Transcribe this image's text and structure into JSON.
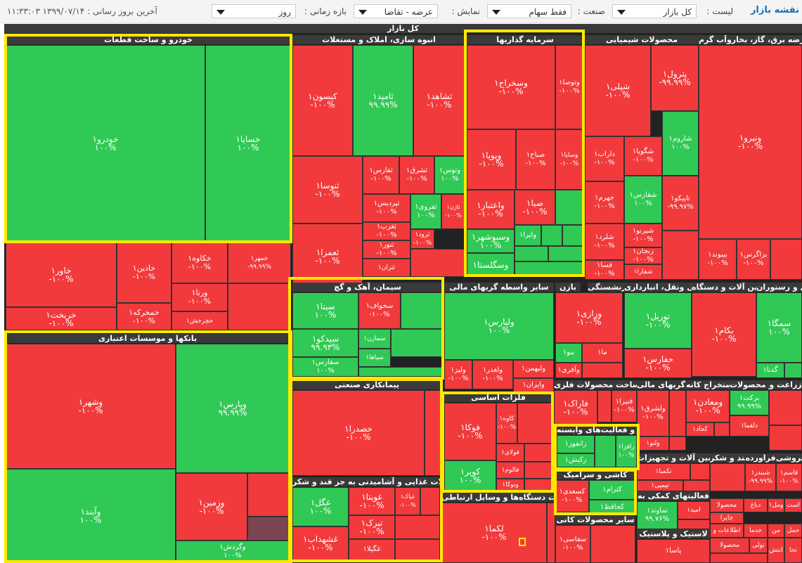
{
  "toolbar": {
    "title": "نقشه بازار",
    "list_label": "لیست :",
    "list_value": "کل بازار",
    "industry_label": "صنعت :",
    "industry_value": "فقط سهام",
    "display_label": "نمایش :",
    "display_value": "عرضه - تقاضا",
    "period_label": "بازه زمانی :",
    "period_value": "روز",
    "last_update": "آخرین بروز رسانی : ۱۳۹۹/۰۷/۱۴ ۱۱:۳۳:۰۳"
  },
  "map_title": "کل بازار",
  "sectors": [
    "خودرو و ساخت قطعات",
    "انبوه سازی، املاک و مستغلات",
    "سرمایه گذاریها",
    "محصولات شیمیایی",
    "عرضه برق، گاز، بخاروآب گرم",
    "سیمان، آهک و گچ",
    "سایر واسطه گریهای مالی",
    "بازن",
    "بیمه وصندوق بازنشستگی",
    "حمل ونقل، انبارداری",
    "ماشین آلات و دستگاه",
    "هتل و رستوران",
    "بانکها و موسسات اعتباری",
    "پیمانکاری صنعتی",
    "فلزات اساسی",
    "ساخت محصولات فلزی",
    "واسطه گریهای مالی",
    "استخراج کانه",
    "مواد و محصولات",
    "زراعت و",
    "رایانه و فعالیت‌های وابسته",
    "ماشین آلات و تجهیزات",
    "قند و شکر",
    "فراورده",
    "خرده فروشی",
    "محصولات غذایی و آشامیدنی به جز قند و شکر",
    "ساخت دستگاه‌ها و وسایل ارتباطی",
    "کاشی و سرامیک",
    "فعالیتهای کمکی به",
    "سایر محصولات کانی",
    "لاستیک و پلاستیک"
  ],
  "tiles": [
    {
      "name": "خودرو۱",
      "value": "۱۰۰%"
    },
    {
      "name": "خساپا۱",
      "value": "۱۰۰%"
    },
    {
      "name": "خاور۱",
      "value": "-۱۰۰%"
    },
    {
      "name": "خاذین۱",
      "value": "-۱۰۰%"
    },
    {
      "name": "خکاوه۱",
      "value": "-۱۰۰%"
    },
    {
      "name": "خمهر۱",
      "value": "-۹۹.۹۹%"
    },
    {
      "name": "خریخت۱",
      "value": "-۱۰۰%"
    },
    {
      "name": "خمحرکه۱",
      "value": "-۱۰۰%"
    },
    {
      "name": "ورنا۱",
      "value": "-۱۰۰%"
    },
    {
      "name": "خچرخش۱",
      "value": ""
    },
    {
      "name": "کیسون۱",
      "value": "-۱۰۰%"
    },
    {
      "name": "ثامید۱",
      "value": "۹۹.۹۹%"
    },
    {
      "name": "ثشاهد۱",
      "value": "-۱۰۰%"
    },
    {
      "name": "ثنوسا۱",
      "value": "-۱۰۰%"
    },
    {
      "name": "ثفارس۱",
      "value": "-۱۰۰%"
    },
    {
      "name": "ثشرق۱",
      "value": "-۱۰۰%"
    },
    {
      "name": "وتوس۱",
      "value": "۱۰۰%"
    },
    {
      "name": "ثپردیس۱",
      "value": "-۱۰۰%"
    },
    {
      "name": "ثعمرا۱",
      "value": "-۱۰۰%"
    },
    {
      "name": "ثغرب۱",
      "value": "-۱۰۰%"
    },
    {
      "name": "ثنور۱",
      "value": "-۱۰۰%"
    },
    {
      "name": "ثتران۱",
      "value": ""
    },
    {
      "name": "ثفروی۱",
      "value": "۱۰۰%"
    },
    {
      "name": "ثاژن۱",
      "value": "-۱۰۰%"
    },
    {
      "name": "ثرود۱",
      "value": "-۱۰۰%"
    },
    {
      "name": "وسخراج۱",
      "value": "-۱۰۰%"
    },
    {
      "name": "وتوصا۱",
      "value": "-۱۰۰%"
    },
    {
      "name": "وپویا۱",
      "value": "-۱۰۰%"
    },
    {
      "name": "صباح۱",
      "value": "-۱۰۰%"
    },
    {
      "name": "وساپا۱",
      "value": "-۱۰۰%"
    },
    {
      "name": "واعتبار۱",
      "value": "-۱۰۰%"
    },
    {
      "name": "صبا۱",
      "value": "-۱۰۰%"
    },
    {
      "name": "وسبوشهر۱",
      "value": "۱۰۰%"
    },
    {
      "name": "وایرا۱",
      "value": ""
    },
    {
      "name": "وسگلستا۱",
      "value": ""
    },
    {
      "name": "شپلی۱",
      "value": "-۱۰۰%"
    },
    {
      "name": "پترول۱",
      "value": "-۹۹.۹۹%"
    },
    {
      "name": "داراب۱",
      "value": "-۱۰۰%"
    },
    {
      "name": "شگویا۱",
      "value": "-۱۰۰%"
    },
    {
      "name": "شاروم۱",
      "value": "۱۰۰%"
    },
    {
      "name": "جهرم۱",
      "value": "-۱۰۰%"
    },
    {
      "name": "شفارس۱",
      "value": "۱۰۰%"
    },
    {
      "name": "تاپیکو۱",
      "value": "-۹۹.۹۷%"
    },
    {
      "name": "شیرنو۱",
      "value": "-۱۰۰%"
    },
    {
      "name": "شلرد۱",
      "value": "-۱۰۰%"
    },
    {
      "name": "زنجان۱",
      "value": "-۱۰۰%"
    },
    {
      "name": "فسا۱",
      "value": "-۱۰۰%"
    },
    {
      "name": "شفارا۱",
      "value": ""
    },
    {
      "name": "ونیرو۱",
      "value": "-۱۰۰%"
    },
    {
      "name": "بیبوند۱",
      "value": "-۱۰۰%"
    },
    {
      "name": "بزاگرس۱",
      "value": "-۱۰۰%"
    },
    {
      "name": "سیتا۱",
      "value": "۱۰۰%"
    },
    {
      "name": "سخواف۱",
      "value": "-۱۰۰%"
    },
    {
      "name": "سیدکو۱",
      "value": "۹۹.۹۳%"
    },
    {
      "name": "سمازن۱",
      "value": ""
    },
    {
      "name": "سپاها۱",
      "value": ""
    },
    {
      "name": "سفارس۱",
      "value": "۱۰۰%"
    },
    {
      "name": "ولپارس۱",
      "value": "۱۰۰%"
    },
    {
      "name": "ولیز۱",
      "value": "-۱۰۰%"
    },
    {
      "name": "ولغدر۱",
      "value": "-۱۰۰%"
    },
    {
      "name": "ولبهمن۱",
      "value": ""
    },
    {
      "name": "وایران۱",
      "value": ""
    },
    {
      "name": "ورازی۱",
      "value": "-۱۰۰%"
    },
    {
      "name": "بنو۱",
      "value": ""
    },
    {
      "name": "وآفری۱",
      "value": ""
    },
    {
      "name": "ما۱",
      "value": ""
    },
    {
      "name": "توریل۱",
      "value": "-۱۰۰%"
    },
    {
      "name": "حفارس۱",
      "value": "-۱۰۰%"
    },
    {
      "name": "بکام۱",
      "value": "-۱۰۰%"
    },
    {
      "name": "سمگا۱",
      "value": "۱۰۰%"
    },
    {
      "name": "گدنا۱",
      "value": ""
    },
    {
      "name": "وشهر۱",
      "value": "-۱۰۰%"
    },
    {
      "name": "وپارس۱",
      "value": "۹۹.۹۹%"
    },
    {
      "name": "وآیند۱",
      "value": "۱۰۰%"
    },
    {
      "name": "وزمین۱",
      "value": "-۱۰۰%"
    },
    {
      "name": "وگردش۱",
      "value": "۱۰۰%"
    },
    {
      "name": "خصدرا۱",
      "value": "-۱۰۰%"
    },
    {
      "name": "فوکا۱",
      "value": "-۱۰۰%"
    },
    {
      "name": "کاوه۱",
      "value": "-۱۰۰%"
    },
    {
      "name": "فولای۱",
      "value": ""
    },
    {
      "name": "فالوم۱",
      "value": ""
    },
    {
      "name": "کویر۱",
      "value": "۱۰۰%"
    },
    {
      "name": "ونوکا۱",
      "value": ""
    },
    {
      "name": "فاراک۱",
      "value": "-۱۰۰%"
    },
    {
      "name": "فنیرا۱",
      "value": "-۱۰۰%"
    },
    {
      "name": "ولشرق۱",
      "value": "-۱۰۰%"
    },
    {
      "name": "ومعادن۱",
      "value": "-۱۰۰%"
    },
    {
      "name": "برکت۱",
      "value": "۹۹.۹۹%"
    },
    {
      "name": "کجاد۱",
      "value": ""
    },
    {
      "name": "دلقما۱",
      "value": ""
    },
    {
      "name": "ولنو۱",
      "value": ""
    },
    {
      "name": "رانفور۱",
      "value": ""
    },
    {
      "name": "رکیش۱",
      "value": ""
    },
    {
      "name": "رافزا۱",
      "value": "۱۰۰%"
    },
    {
      "name": "تکمبا۱",
      "value": ""
    },
    {
      "name": "تپمپی۱",
      "value": ""
    },
    {
      "name": "شبندر۱",
      "value": "-۹۹.۹۹%"
    },
    {
      "name": "قاسم۱",
      "value": "-۱۰۰%"
    },
    {
      "name": "غگل۱",
      "value": "۱۰۰%"
    },
    {
      "name": "غویتا۱",
      "value": "-۱۰۰%"
    },
    {
      "name": "غپاک۱",
      "value": "-۱۰۰%"
    },
    {
      "name": "غشهداب۱",
      "value": "-۱۰۰%"
    },
    {
      "name": "تبرک۱",
      "value": "-۱۰۰%"
    },
    {
      "name": "غگیلا۱",
      "value": ""
    },
    {
      "name": "لکما۱",
      "value": "-۱۰۰%"
    },
    {
      "name": "کسعدی۱",
      "value": "-۱۰۰%"
    },
    {
      "name": "کترام۱",
      "value": ""
    },
    {
      "name": "کحافظ۱",
      "value": ""
    },
    {
      "name": "تماوند۱",
      "value": "۹۹.۷۶%"
    },
    {
      "name": "امید۱",
      "value": ""
    },
    {
      "name": "سفاسی۱",
      "value": "-۱۰۰%"
    },
    {
      "name": "پاسا۱",
      "value": ""
    },
    {
      "name": "محصولا",
      "value": ""
    },
    {
      "name": "دیاغ",
      "value": ""
    },
    {
      "name": "ومل۱",
      "value": ""
    },
    {
      "name": "چاپرا",
      "value": ""
    },
    {
      "name": "اطلاعات و",
      "value": ""
    },
    {
      "name": "خدما",
      "value": ""
    },
    {
      "name": "من",
      "value": ""
    },
    {
      "name": "حمل",
      "value": ""
    },
    {
      "name": "است",
      "value": ""
    },
    {
      "name": "تولی",
      "value": ""
    },
    {
      "name": "انتش",
      "value": ""
    },
    {
      "name": "تجا",
      "value": ""
    }
  ],
  "colors": {
    "up": "#30c955",
    "down": "#f23a3c",
    "header": "#3a3a3a",
    "highlight": "#ffe800"
  }
}
